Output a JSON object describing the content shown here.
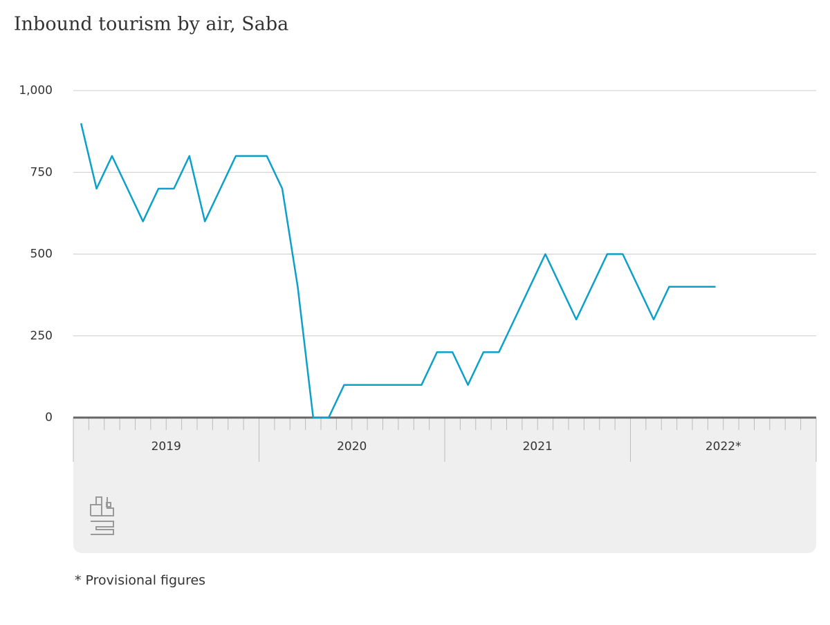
{
  "chart_data": {
    "type": "line",
    "title": "Inbound tourism by air, Saba",
    "year_labels": [
      "2019",
      "2020",
      "2021",
      "2022*"
    ],
    "series": [
      {
        "color": "#0ba0c9",
        "values": [
          900,
          700,
          800,
          700,
          600,
          700,
          700,
          800,
          600,
          700,
          800,
          800,
          800,
          700,
          400,
          0,
          0,
          100,
          100,
          100,
          100,
          100,
          100,
          200,
          200,
          100,
          200,
          200,
          300,
          400,
          500,
          400,
          300,
          400,
          500,
          500,
          400,
          300,
          400,
          400,
          400,
          400
        ]
      }
    ],
    "ylim": [
      0,
      1000
    ],
    "yticks": [
      0,
      250,
      500,
      750,
      {
        "value": 1000,
        "label": "1,000"
      }
    ],
    "grid": true,
    "note": "* Provisional figures"
  }
}
